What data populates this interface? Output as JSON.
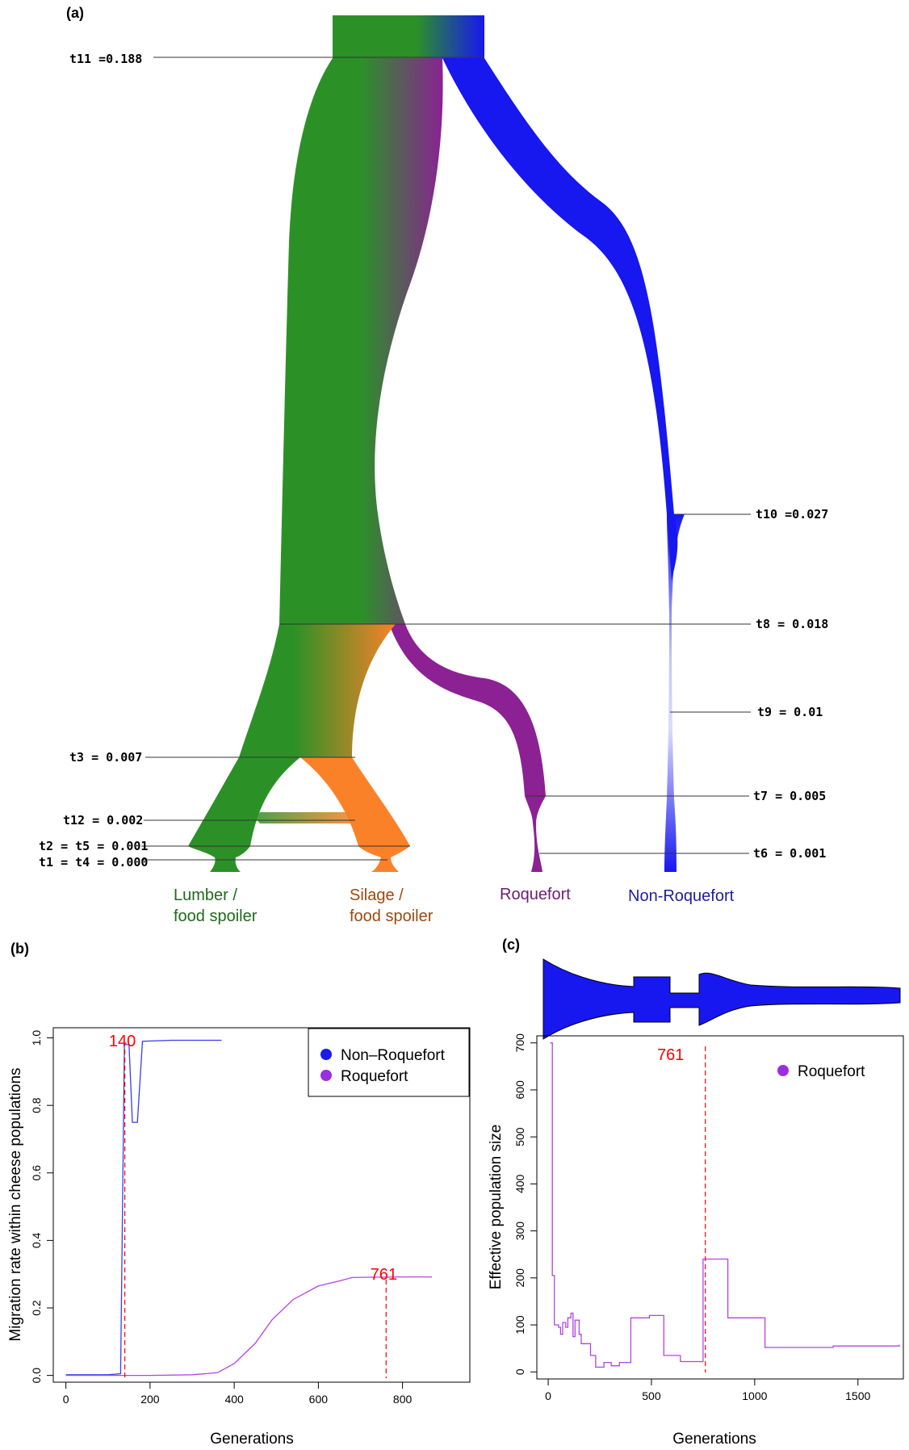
{
  "panels": {
    "a": "(a)",
    "b": "(b)",
    "c": "(c)"
  },
  "colors": {
    "lumber": "#2b9127",
    "lumber_text": "#1d6a1a",
    "silage": "#fb8128",
    "silage_text": "#9a4a10",
    "roquefort": "#8b2193",
    "roquefort_text": "#6b1e74",
    "nonroquefort": "#1717f0",
    "nonroquefort_text": "#1e1e9e",
    "annotation": "#ff0000",
    "line_nonroquefort": "#3b3bf0",
    "line_roquefort": "#b344e0",
    "legend_nonroquefort": "#1a1aee",
    "legend_roquefort": "#9a2ee0"
  },
  "tree": {
    "time_labels": {
      "t11": "t11 =0.188",
      "t10": "t10 =0.027",
      "t8": "t8 = 0.018",
      "t9": "t9 = 0.01",
      "t3": "t3 = 0.007",
      "t7": "t7 = 0.005",
      "t12": "t12 = 0.002",
      "t2t5": "t2 = t5 = 0.001",
      "t6": "t6 = 0.001",
      "t1t4": "t1 = t4 = 0.000"
    },
    "populations": {
      "lumber": [
        "Lumber /",
        "food spoiler"
      ],
      "silage": [
        "Silage /",
        "food spoiler"
      ],
      "roquefort": "Roquefort",
      "nonroquefort": "Non-Roquefort"
    }
  },
  "chart_data": [
    {
      "panel": "b",
      "type": "line",
      "title": "",
      "xlabel": "Generations",
      "ylabel": "Migration rate within cheese populations",
      "xlim": [
        -30,
        960
      ],
      "ylim": [
        -0.02,
        1.03
      ],
      "xticks": [
        0,
        200,
        400,
        600,
        800
      ],
      "yticks": [
        0.0,
        0.2,
        0.4,
        0.6,
        0.8,
        1.0
      ],
      "ytick_labels": [
        "0.0",
        "0.2",
        "0.4",
        "0.6",
        "0.8",
        "1.0"
      ],
      "legend": {
        "position": "top-right",
        "entries": [
          "Non–Roquefort",
          "Roquefort"
        ]
      },
      "series": [
        {
          "name": "Non–Roquefort",
          "points": [
            [
              0,
              0.002
            ],
            [
              100,
              0.002
            ],
            [
              130,
              0.005
            ],
            [
              139,
              0.98
            ],
            [
              150,
              0.98
            ],
            [
              158,
              0.75
            ],
            [
              170,
              0.75
            ],
            [
              182,
              0.99
            ],
            [
              250,
              0.993
            ],
            [
              370,
              0.993
            ]
          ]
        },
        {
          "name": "Roquefort",
          "points": [
            [
              0,
              0
            ],
            [
              100,
              0
            ],
            [
              200,
              0
            ],
            [
              300,
              0.002
            ],
            [
              360,
              0.008
            ],
            [
              400,
              0.035
            ],
            [
              450,
              0.095
            ],
            [
              490,
              0.165
            ],
            [
              540,
              0.225
            ],
            [
              600,
              0.265
            ],
            [
              650,
              0.28
            ],
            [
              680,
              0.29
            ],
            [
              720,
              0.291
            ],
            [
              800,
              0.292
            ],
            [
              870,
              0.292
            ]
          ]
        }
      ],
      "annotations": [
        {
          "label": "140",
          "x": 140
        },
        {
          "label": "761",
          "x": 761
        }
      ]
    },
    {
      "panel": "c",
      "type": "line",
      "title": "",
      "xlabel": "Generations",
      "ylabel": "Effective population size",
      "xlim": [
        -55,
        1720
      ],
      "ylim": [
        -15,
        715
      ],
      "xticks": [
        0,
        500,
        1000,
        1500
      ],
      "yticks": [
        0,
        100,
        200,
        300,
        400,
        500,
        600,
        700
      ],
      "legend": {
        "position": "top-right",
        "entries": [
          "Roquefort"
        ]
      },
      "series": [
        {
          "name": "Roquefort",
          "step_points": [
            [
              10,
              700
            ],
            [
              20,
              205
            ],
            [
              30,
              100
            ],
            [
              50,
              95
            ],
            [
              60,
              80
            ],
            [
              70,
              105
            ],
            [
              85,
              95
            ],
            [
              95,
              115
            ],
            [
              110,
              125
            ],
            [
              120,
              75
            ],
            [
              130,
              110
            ],
            [
              150,
              80
            ],
            [
              160,
              60
            ],
            [
              170,
              60
            ],
            [
              205,
              35
            ],
            [
              230,
              10
            ],
            [
              270,
              20
            ],
            [
              305,
              13
            ],
            [
              345,
              20
            ],
            [
              400,
              115
            ],
            [
              490,
              120
            ],
            [
              560,
              35
            ],
            [
              640,
              22
            ],
            [
              750,
              240
            ],
            [
              870,
              115
            ],
            [
              1050,
              52
            ],
            [
              1380,
              55
            ],
            [
              1700,
              58
            ]
          ]
        }
      ],
      "annotations": [
        {
          "label": "761",
          "x": 761
        }
      ]
    }
  ]
}
